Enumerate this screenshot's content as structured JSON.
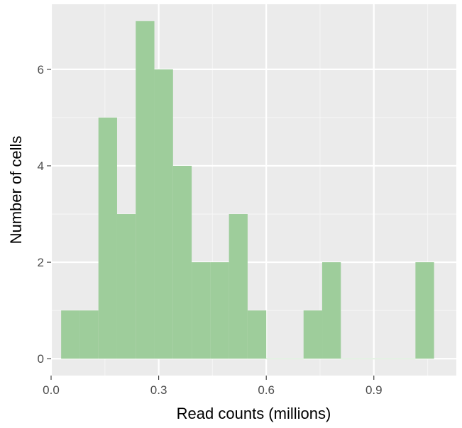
{
  "chart_data": {
    "type": "bar",
    "subtype": "histogram",
    "title": "",
    "xlabel": "Read counts (millions)",
    "ylabel": "Number of cells",
    "xlim": [
      0.0,
      1.13
    ],
    "ylim": [
      -0.35,
      7.35
    ],
    "x_ticks": [
      {
        "value": 0.0,
        "label": "0.0"
      },
      {
        "value": 0.3,
        "label": "0.3"
      },
      {
        "value": 0.6,
        "label": "0.6"
      },
      {
        "value": 0.9,
        "label": "0.9"
      }
    ],
    "y_ticks": [
      {
        "value": 0,
        "label": "0"
      },
      {
        "value": 2,
        "label": "2"
      },
      {
        "value": 4,
        "label": "4"
      },
      {
        "value": 6,
        "label": "6"
      }
    ],
    "bin_width": 0.052,
    "bin_starts": [
      0.028,
      0.08,
      0.132,
      0.184,
      0.236,
      0.288,
      0.34,
      0.392,
      0.444,
      0.496,
      0.548,
      0.6,
      0.652,
      0.704,
      0.756,
      0.808,
      0.86,
      0.912,
      0.964,
      1.016,
      1.068
    ],
    "values": [
      1,
      1,
      5,
      3,
      7,
      6,
      4,
      2,
      2,
      3,
      1,
      0,
      0,
      1,
      2,
      0,
      0,
      0,
      0,
      2
    ],
    "grid": true,
    "legend": "none",
    "colors": {
      "bar_fill": "#9ecd9b",
      "panel_background": "#ebebeb",
      "grid_major": "#ffffff",
      "grid_minor": "#f5f5f5",
      "tick_text": "#4d4d4d",
      "tick_mark": "#333333"
    }
  }
}
